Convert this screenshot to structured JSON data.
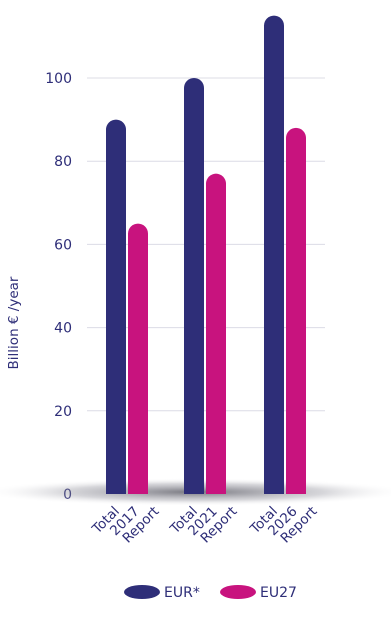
{
  "chart_data": {
    "type": "bar",
    "ylabel": "Billion € /year",
    "ylim": [
      0,
      120
    ],
    "yticks": [
      0,
      20,
      40,
      60,
      80,
      100
    ],
    "grid": true,
    "legend_position": "bottom",
    "categories": [
      [
        "Total",
        "2017",
        "Report"
      ],
      [
        "Total",
        "2021",
        "Report"
      ],
      [
        "Total",
        "2026",
        "Report"
      ]
    ],
    "series": [
      {
        "name": "EUR*",
        "color": "#2e2e78",
        "values": [
          90,
          100,
          115
        ]
      },
      {
        "name": "EU27",
        "color": "#c8137e",
        "values": [
          65,
          77,
          88
        ]
      }
    ]
  }
}
